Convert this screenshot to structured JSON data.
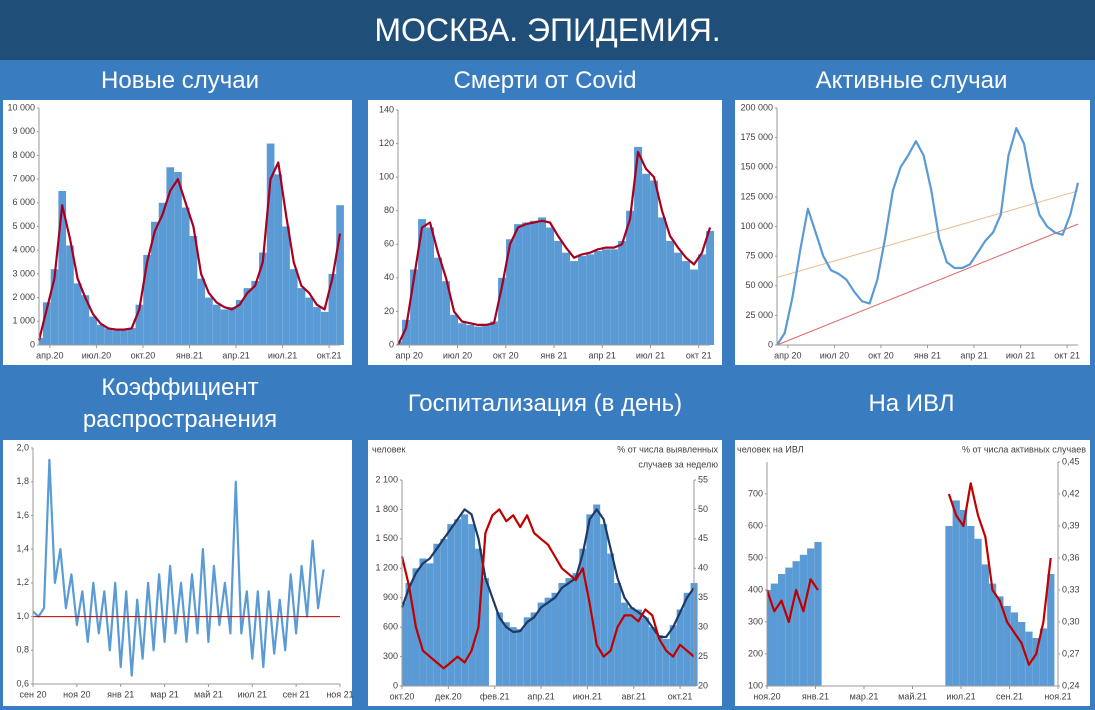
{
  "title": "МОСКВА. ЭПИДЕМИЯ.",
  "chart_data": [
    {
      "type": "bar",
      "title": "Новые случаи",
      "xlim": [
        0.3,
        19.7
      ],
      "xticks": [
        {
          "value": 1,
          "label": "апр.20"
        },
        {
          "value": 4,
          "label": "июл.20"
        },
        {
          "value": 7,
          "label": "окт.20"
        },
        {
          "value": 10,
          "label": "янв.21"
        },
        {
          "value": 13,
          "label": "апр.21"
        },
        {
          "value": 16,
          "label": "июл.21"
        },
        {
          "value": 19,
          "label": "окт.21"
        }
      ],
      "ylim": [
        0,
        10000
      ],
      "yticks": [
        0,
        {
          "value": 1000,
          "label": "1 000"
        },
        {
          "value": 2000,
          "label": "2 000"
        },
        {
          "value": 3000,
          "label": "3 000"
        },
        {
          "value": 4000,
          "label": "4 000"
        },
        {
          "value": 5000,
          "label": "5 000"
        },
        {
          "value": 6000,
          "label": "6 000"
        },
        {
          "value": 7000,
          "label": "7 000"
        },
        {
          "value": 8000,
          "label": "8 000"
        },
        {
          "value": 9000,
          "label": "9 000"
        },
        {
          "value": 10000,
          "label": "10 000"
        }
      ],
      "series": [
        {
          "type": "bar",
          "color": "#5b9bd5",
          "values": [
            300,
            1800,
            3200,
            6500,
            4200,
            2600,
            2100,
            1200,
            850,
            700,
            620,
            640,
            720,
            1700,
            3800,
            5200,
            6000,
            7500,
            7300,
            5800,
            4600,
            2800,
            2000,
            1700,
            1500,
            1600,
            1900,
            2400,
            2700,
            3900,
            8500,
            7200,
            5000,
            3200,
            2400,
            2000,
            1600,
            1400,
            3000,
            5900
          ]
        },
        {
          "type": "line",
          "color": "#a50021",
          "values": [
            200,
            1500,
            2800,
            5900,
            4500,
            2800,
            2000,
            1300,
            900,
            700,
            650,
            650,
            700,
            1500,
            3500,
            4800,
            5500,
            6500,
            7000,
            6000,
            5000,
            3000,
            2200,
            1800,
            1600,
            1500,
            1700,
            2200,
            2500,
            3500,
            7000,
            7700,
            5500,
            3500,
            2500,
            2200,
            1700,
            1500,
            2800,
            4700
          ]
        }
      ]
    },
    {
      "type": "bar",
      "title": "Смерти от Covid",
      "xlim": [
        0.3,
        19.7
      ],
      "xticks": [
        {
          "value": 1,
          "label": "апр 20"
        },
        {
          "value": 4,
          "label": "июл 20"
        },
        {
          "value": 7,
          "label": "окт 20"
        },
        {
          "value": 10,
          "label": "янв 21"
        },
        {
          "value": 13,
          "label": "апр 21"
        },
        {
          "value": 16,
          "label": "июл 21"
        },
        {
          "value": 19,
          "label": "окт 21"
        }
      ],
      "ylim": [
        0,
        140
      ],
      "yticks": [
        0,
        20,
        40,
        60,
        80,
        100,
        120,
        140
      ],
      "series": [
        {
          "type": "bar",
          "color": "#5b9bd5",
          "values": [
            2,
            15,
            45,
            75,
            70,
            52,
            38,
            18,
            13,
            12,
            11,
            12,
            14,
            40,
            63,
            72,
            73,
            74,
            76,
            70,
            62,
            55,
            50,
            53,
            54,
            56,
            57,
            57,
            62,
            80,
            118,
            102,
            98,
            76,
            62,
            55,
            50,
            45,
            54,
            68
          ]
        },
        {
          "type": "line",
          "color": "#a50021",
          "values": [
            0,
            10,
            40,
            70,
            73,
            55,
            40,
            20,
            14,
            13,
            12,
            12,
            13,
            35,
            60,
            70,
            72,
            73,
            74,
            73,
            65,
            58,
            52,
            54,
            55,
            57,
            58,
            58,
            60,
            75,
            115,
            105,
            100,
            80,
            65,
            58,
            52,
            48,
            55,
            70
          ]
        }
      ]
    },
    {
      "type": "line",
      "title": "Активные случаи",
      "xlim": [
        0.3,
        19.7
      ],
      "xticks": [
        {
          "value": 1,
          "label": "апр 20"
        },
        {
          "value": 4,
          "label": "июл 20"
        },
        {
          "value": 7,
          "label": "окт 20"
        },
        {
          "value": 10,
          "label": "янв 21"
        },
        {
          "value": 13,
          "label": "апр 21"
        },
        {
          "value": 16,
          "label": "июл 21"
        },
        {
          "value": 19,
          "label": "окт 21"
        }
      ],
      "ylim": [
        0,
        200000
      ],
      "yticks": [
        0,
        {
          "value": 25000,
          "label": "25 000"
        },
        {
          "value": 50000,
          "label": "50 000"
        },
        {
          "value": 75000,
          "label": "75 000"
        },
        {
          "value": 100000,
          "label": "100 000"
        },
        {
          "value": 125000,
          "label": "125 000"
        },
        {
          "value": 150000,
          "label": "150 000"
        },
        {
          "value": 175000,
          "label": "175 000"
        },
        {
          "value": 200000,
          "label": "200 000"
        }
      ],
      "trendlines": [
        {
          "color": "#e8b98a",
          "values": [
            57000,
            130000
          ]
        },
        {
          "color": "#e06666",
          "values": [
            0,
            102000
          ]
        }
      ],
      "series": [
        {
          "type": "line",
          "color": "#5b9bd5",
          "values": [
            0,
            10000,
            40000,
            80000,
            115000,
            95000,
            75000,
            63000,
            60000,
            55000,
            45000,
            37000,
            35000,
            55000,
            90000,
            130000,
            150000,
            160000,
            172000,
            160000,
            130000,
            90000,
            70000,
            65000,
            65000,
            68000,
            78000,
            88000,
            95000,
            110000,
            160000,
            183000,
            170000,
            135000,
            110000,
            100000,
            95000,
            93000,
            110000,
            137000
          ]
        }
      ]
    },
    {
      "type": "line",
      "title": "Коэффициент распространения",
      "xlim": [
        6,
        20
      ],
      "xticks": [
        {
          "value": 6,
          "label": "сен 20"
        },
        {
          "value": 8,
          "label": "ноя 20"
        },
        {
          "value": 10,
          "label": "янв 21"
        },
        {
          "value": 12,
          "label": "мар 21"
        },
        {
          "value": 14,
          "label": "май 21"
        },
        {
          "value": 16,
          "label": "июл 21"
        },
        {
          "value": 18,
          "label": "сен 21"
        },
        {
          "value": 20,
          "label": "ноя 21"
        }
      ],
      "ylim": [
        0.6,
        2.0
      ],
      "yticks": [
        {
          "value": 0.6,
          "label": "0,6"
        },
        {
          "value": 0.8,
          "label": "0,8"
        },
        {
          "value": 1.0,
          "label": "1,0"
        },
        {
          "value": 1.2,
          "label": "1,2"
        },
        {
          "value": 1.4,
          "label": "1,4"
        },
        {
          "value": 1.6,
          "label": "1,6"
        },
        {
          "value": 1.8,
          "label": "1,8"
        },
        {
          "value": 2.0,
          "label": "2,0"
        }
      ],
      "ref_line": {
        "value": 1.0,
        "color": "#c00000"
      },
      "series": [
        {
          "type": "line",
          "color": "#5b9bd5",
          "values": [
            1.03,
            1.0,
            1.05,
            1.93,
            1.2,
            1.4,
            1.05,
            1.25,
            0.95,
            1.15,
            0.85,
            1.2,
            0.9,
            1.15,
            0.8,
            1.2,
            0.7,
            1.15,
            0.65,
            1.1,
            0.75,
            1.2,
            0.8,
            1.25,
            0.85,
            1.3,
            0.9,
            1.2,
            0.85,
            1.25,
            0.9,
            1.4,
            0.85,
            1.3,
            0.95,
            1.2,
            0.9,
            1.8,
            0.9,
            1.15,
            0.75,
            1.15,
            0.7,
            1.15,
            0.78,
            1.1,
            0.8,
            1.25,
            0.9,
            1.3,
            1.0,
            1.45,
            1.05,
            1.28,
            null,
            null,
            null
          ]
        }
      ]
    },
    {
      "type": "bar",
      "title": "Госпитализация (в день)",
      "y_label": "человек",
      "y2_label": [
        "% от числа выявленных",
        "случаев за неделю"
      ],
      "xlim": [
        7,
        19.6
      ],
      "xticks": [
        {
          "value": 7,
          "label": "окт.20"
        },
        {
          "value": 9,
          "label": "дек.20"
        },
        {
          "value": 11,
          "label": "фев.21"
        },
        {
          "value": 13,
          "label": "апр.21"
        },
        {
          "value": 15,
          "label": "июн.21"
        },
        {
          "value": 17,
          "label": "авг.21"
        },
        {
          "value": 19,
          "label": "окт.21"
        }
      ],
      "ylim": [
        0,
        2100
      ],
      "yticks": [
        0,
        300,
        600,
        900,
        {
          "value": 1200,
          "label": "1 200"
        },
        {
          "value": 1500,
          "label": "1 500"
        },
        {
          "value": 1800,
          "label": "1 800"
        },
        {
          "value": 2100,
          "label": "2 100"
        }
      ],
      "y2lim": [
        20,
        55
      ],
      "y2ticks": [
        20,
        25,
        30,
        35,
        40,
        45,
        50,
        55
      ],
      "series": [
        {
          "type": "bar",
          "color": "#5b9bd5",
          "values": [
            850,
            1050,
            1200,
            1300,
            1250,
            1450,
            1500,
            1650,
            1700,
            1750,
            1650,
            1400,
            1100,
            null,
            750,
            650,
            600,
            580,
            700,
            750,
            850,
            900,
            950,
            1050,
            1100,
            1150,
            1400,
            1750,
            1850,
            1650,
            1350,
            1050,
            850,
            800,
            780,
            700,
            600,
            520,
            480,
            620,
            780,
            950,
            1050
          ]
        },
        {
          "type": "line",
          "color": "#1f3864",
          "values": [
            800,
            1000,
            1150,
            1250,
            1300,
            1400,
            1500,
            1600,
            1700,
            1800,
            1750,
            1500,
            1100,
            900,
            700,
            600,
            550,
            560,
            650,
            700,
            800,
            850,
            900,
            1000,
            1050,
            1100,
            1350,
            1700,
            1800,
            1700,
            1400,
            1100,
            900,
            800,
            750,
            700,
            600,
            500,
            500,
            600,
            750,
            900,
            1000
          ]
        },
        {
          "type": "line",
          "axis": "y2",
          "color": "#c00000",
          "values": [
            42,
            37,
            30,
            26,
            25,
            24,
            23,
            24,
            25,
            24,
            26,
            30,
            46,
            49,
            50,
            48,
            49,
            47,
            49,
            46,
            45,
            44,
            42,
            40,
            39,
            38,
            40,
            34,
            27,
            25,
            26,
            30,
            32,
            32,
            31,
            33,
            32,
            28,
            26,
            25,
            27,
            26,
            25
          ]
        }
      ]
    },
    {
      "type": "bar",
      "title": "На ИВЛ",
      "y_label": "человек на ИВЛ",
      "y2_label": [
        "% от числа активных случаев"
      ],
      "xlim": [
        8,
        20
      ],
      "xticks": [
        {
          "value": 8,
          "label": "ноя.20"
        },
        {
          "value": 10,
          "label": "янв.21"
        },
        {
          "value": 12,
          "label": "мар.21"
        },
        {
          "value": 14,
          "label": "май.21"
        },
        {
          "value": 16,
          "label": "июл.21"
        },
        {
          "value": 18,
          "label": "сен.21"
        },
        {
          "value": 20,
          "label": "ноя.21"
        }
      ],
      "ylim": [
        100,
        800
      ],
      "yticks": [
        100,
        200,
        300,
        400,
        500,
        600,
        700
      ],
      "y2lim": [
        0.24,
        0.45
      ],
      "y2ticks": [
        {
          "value": 0.24,
          "label": "0,24"
        },
        {
          "value": 0.27,
          "label": "0,27"
        },
        {
          "value": 0.3,
          "label": "0,30"
        },
        {
          "value": 0.33,
          "label": "0,33"
        },
        {
          "value": 0.36,
          "label": "0,36"
        },
        {
          "value": 0.39,
          "label": "0,39"
        },
        {
          "value": 0.42,
          "label": "0,42"
        },
        {
          "value": 0.45,
          "label": "0,45"
        }
      ],
      "series": [
        {
          "type": "bar",
          "color": "#5b9bd5",
          "values": [
            400,
            420,
            450,
            470,
            490,
            510,
            530,
            550,
            null,
            null,
            null,
            null,
            null,
            null,
            null,
            null,
            null,
            null,
            null,
            null,
            null,
            null,
            null,
            null,
            null,
            600,
            680,
            650,
            600,
            560,
            480,
            420,
            380,
            350,
            330,
            300,
            270,
            250,
            280,
            450,
            null
          ]
        },
        {
          "type": "line",
          "axis": "y2",
          "color": "#c00000",
          "values": [
            0.33,
            0.31,
            0.32,
            0.3,
            0.33,
            0.31,
            0.34,
            0.33,
            null,
            null,
            null,
            null,
            null,
            null,
            null,
            null,
            null,
            null,
            null,
            null,
            null,
            null,
            null,
            null,
            null,
            0.42,
            0.4,
            0.39,
            0.43,
            0.4,
            0.38,
            0.33,
            0.32,
            0.3,
            0.29,
            0.28,
            0.26,
            0.27,
            0.3,
            0.36,
            null
          ]
        }
      ]
    }
  ]
}
